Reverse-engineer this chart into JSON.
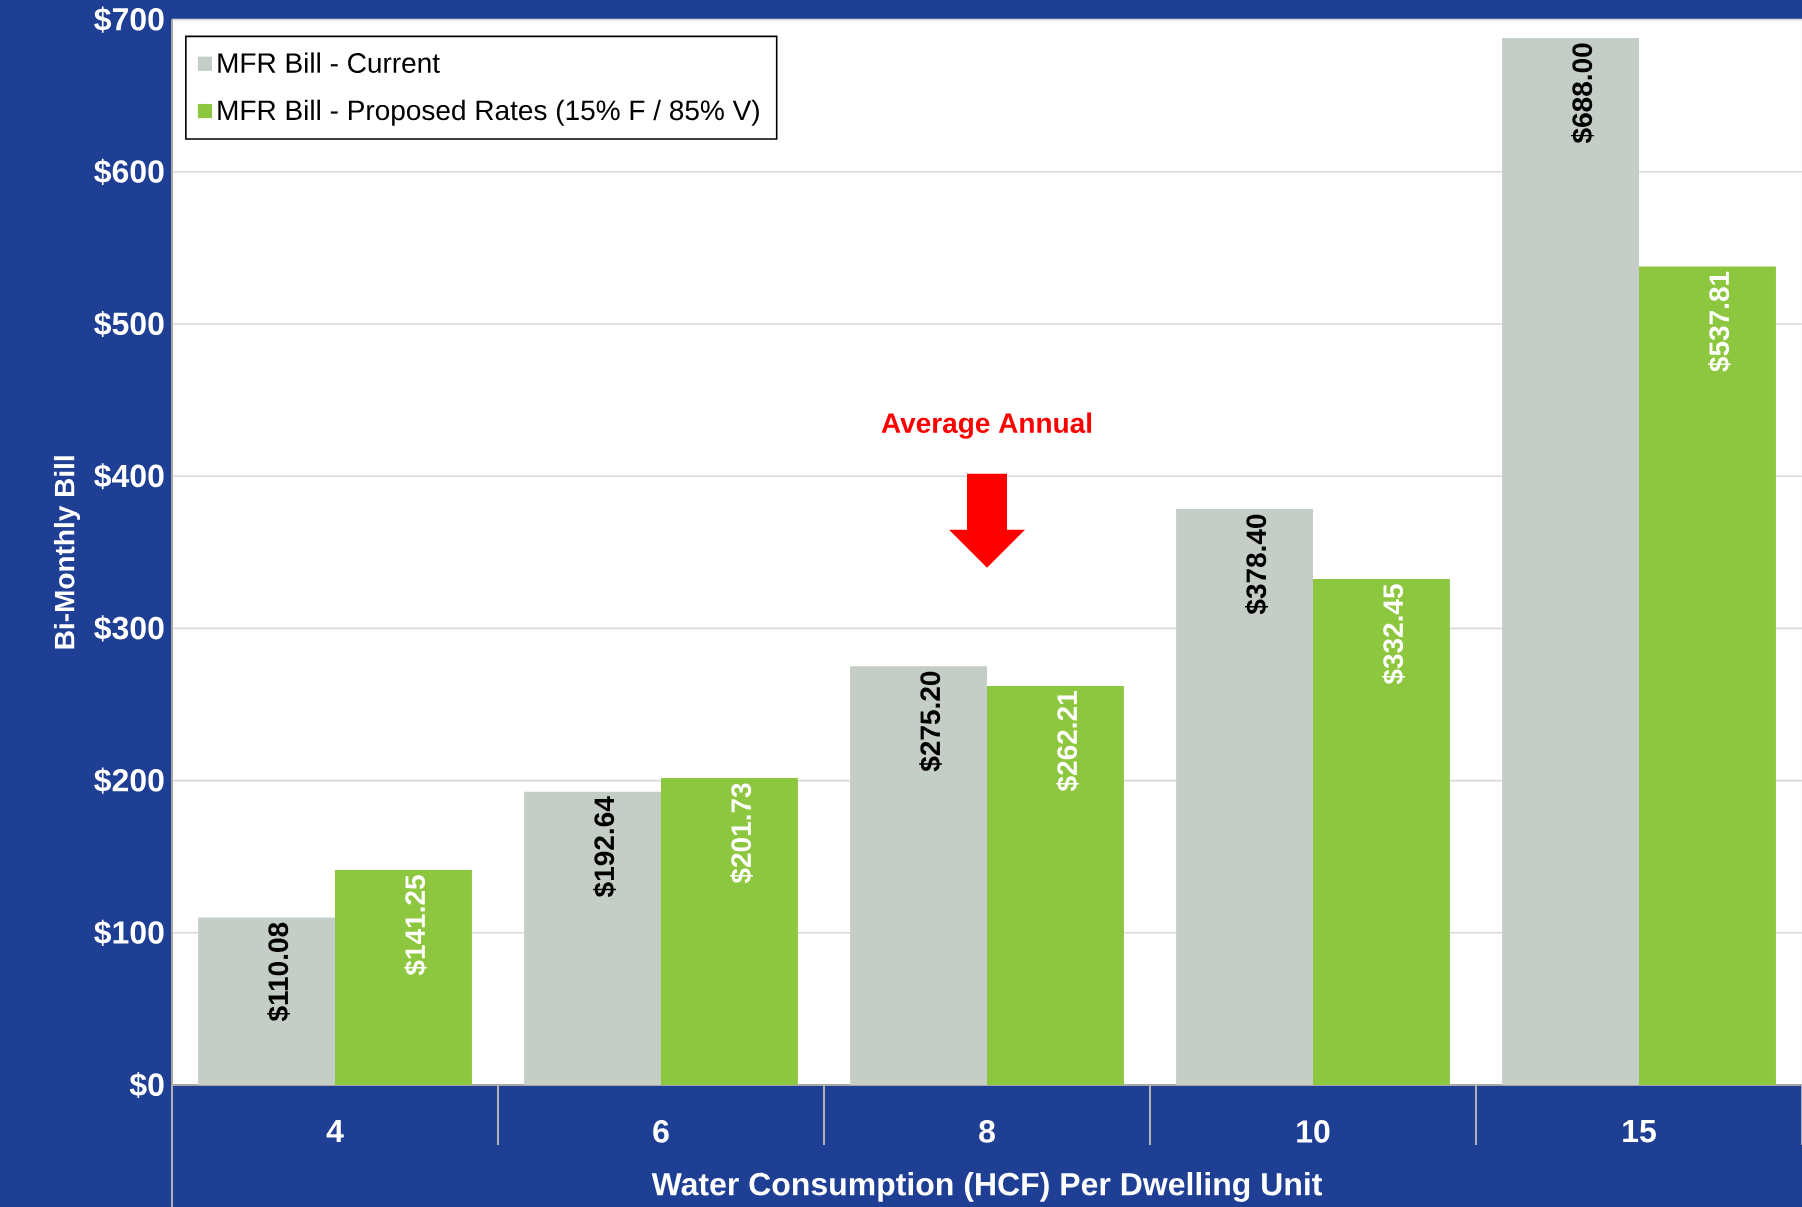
{
  "chart_data": {
    "type": "bar",
    "xlabel": "Water Consumption (HCF) Per Dwelling Unit",
    "ylabel": "Bi-Monthly Bill",
    "categories": [
      "4",
      "6",
      "8",
      "10",
      "15"
    ],
    "series": [
      {
        "name": "MFR Bill - Current",
        "color": "#c5cec6",
        "values": [
          110.08,
          192.64,
          275.2,
          378.4,
          688.0
        ],
        "value_labels": [
          "$110.08",
          "$192.64",
          "$275.20",
          "$378.40",
          "$688.00"
        ]
      },
      {
        "name": "MFR Bill - Proposed Rates (15% F / 85% V)",
        "color": "#8dc63f",
        "values": [
          141.25,
          201.73,
          262.21,
          332.45,
          537.81
        ],
        "value_labels": [
          "$141.25",
          "$201.73",
          "$262.21",
          "$332.45",
          "$537.81"
        ]
      }
    ],
    "ylim": [
      0,
      700
    ],
    "yticks": [
      {
        "value": 0,
        "label": "$0"
      },
      {
        "value": 100,
        "label": "$100"
      },
      {
        "value": 200,
        "label": "$200"
      },
      {
        "value": 300,
        "label": "$300"
      },
      {
        "value": 400,
        "label": "$400"
      },
      {
        "value": 500,
        "label": "$500"
      },
      {
        "value": 600,
        "label": "$600"
      },
      {
        "value": 700,
        "label": "$700"
      }
    ],
    "grid": "y",
    "legend": "top left",
    "annotations": [
      "Average Annual"
    ]
  }
}
